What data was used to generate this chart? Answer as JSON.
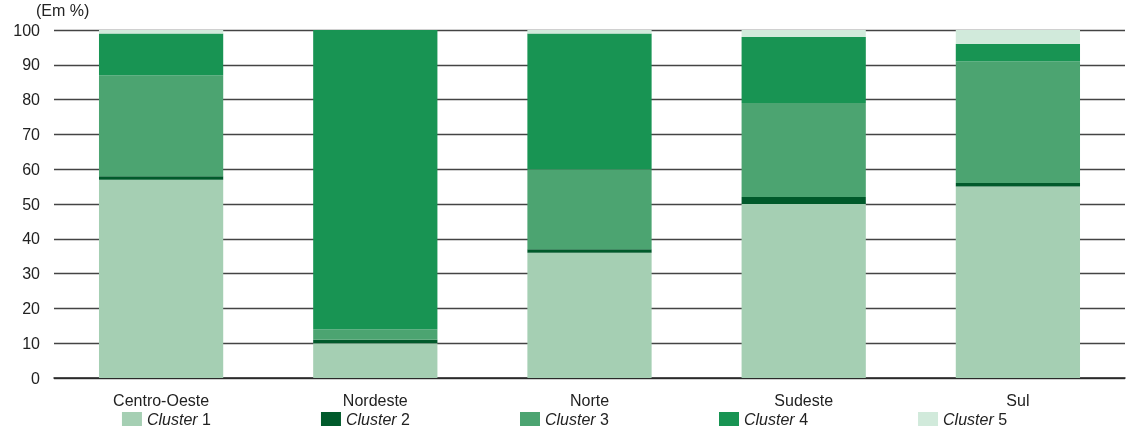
{
  "chart_data": {
    "type": "bar",
    "ylabel": "(Em %)",
    "categories": [
      "Centro-Oeste",
      "Nordeste",
      "Norte",
      "Sudeste",
      "Sul"
    ],
    "series": [
      {
        "name": "Cluster 1",
        "color": "#a5cfb3",
        "values": [
          57,
          10,
          36,
          50,
          55
        ]
      },
      {
        "name": "Cluster 2",
        "color": "#005a2b",
        "values": [
          1,
          1,
          1,
          2,
          1
        ]
      },
      {
        "name": "Cluster 3",
        "color": "#4ca471",
        "values": [
          29,
          3,
          23,
          27,
          35
        ]
      },
      {
        "name": "Cluster 4",
        "color": "#189453",
        "values": [
          12,
          86,
          39,
          19,
          5
        ]
      },
      {
        "name": "Cluster 5",
        "color": "#d1eadb",
        "values": [
          1,
          0,
          1,
          2,
          4
        ]
      }
    ],
    "stacked": true,
    "ylim": [
      0,
      100
    ],
    "yticks": [
      0,
      10,
      20,
      30,
      40,
      50,
      60,
      70,
      80,
      90,
      100
    ],
    "grid": "y",
    "legend": "bottom"
  }
}
